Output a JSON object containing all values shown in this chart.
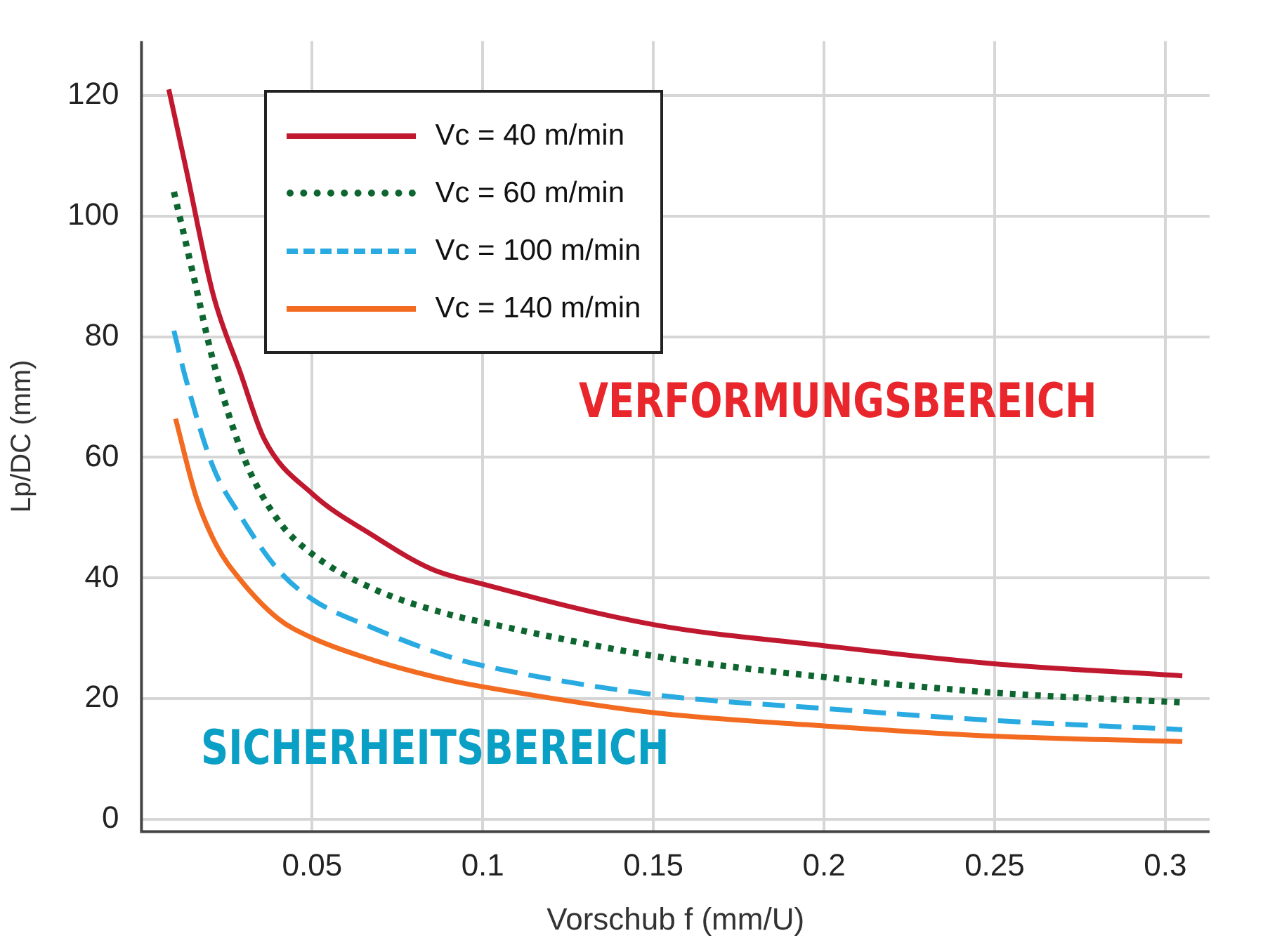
{
  "chart_data": {
    "type": "line",
    "xlabel": "Vorschub f (mm/U)",
    "ylabel": "Lp/DC (mm)",
    "xlim": [
      0,
      0.313
    ],
    "xticks": [
      0.05,
      0.1,
      0.15,
      0.2,
      0.25,
      0.3
    ],
    "ylim": [
      -2,
      129
    ],
    "yticks": [
      0,
      20,
      40,
      60,
      80,
      100,
      120
    ],
    "grid": true,
    "legend": "top left",
    "marker": "none",
    "annotations": [
      "VERFORMUNGSBEREICH",
      "SICHERHEITSBEREICH"
    ],
    "series": [
      {
        "name": "Vc = 40 m/min",
        "color": "#c0182f",
        "line_style": "solid",
        "x": [
          0.008,
          0.013,
          0.021,
          0.029,
          0.036,
          0.05,
          0.068,
          0.085,
          0.1,
          0.15,
          0.2,
          0.25,
          0.305
        ],
        "values": [
          121,
          108,
          87,
          74,
          63,
          54,
          47,
          41.5,
          39,
          32.3,
          28.8,
          25.8,
          23.8
        ]
      },
      {
        "name": "Vc = 60 m/min",
        "color": "#0d6630",
        "line_style": "dotted",
        "x": [
          0.0095,
          0.015,
          0.021,
          0.03,
          0.04,
          0.05,
          0.068,
          0.09,
          0.1,
          0.15,
          0.2,
          0.25,
          0.305
        ],
        "values": [
          104,
          90.7,
          76,
          60,
          49.6,
          44,
          38.2,
          34,
          32.7,
          27.1,
          23.6,
          21,
          19.4
        ]
      },
      {
        "name": "Vc = 100 m/min",
        "color": "#29abe2",
        "line_style": "dashed",
        "x": [
          0.0095,
          0.013,
          0.021,
          0.029,
          0.04,
          0.05,
          0.068,
          0.09,
          0.1,
          0.15,
          0.2,
          0.25,
          0.305
        ],
        "values": [
          81,
          73,
          58.4,
          50.3,
          41.4,
          36.5,
          31.7,
          27,
          25.5,
          20.7,
          18.4,
          16.4,
          14.9
        ]
      },
      {
        "name": "Vc = 140 m/min",
        "color": "#f26b21",
        "line_style": "solid",
        "x": [
          0.01,
          0.016,
          0.022,
          0.029,
          0.04,
          0.05,
          0.068,
          0.09,
          0.1,
          0.15,
          0.2,
          0.25,
          0.305
        ],
        "values": [
          66.4,
          53.5,
          45.4,
          39.7,
          33.3,
          30.1,
          26.4,
          23.1,
          22,
          17.7,
          15.5,
          13.8,
          12.9
        ]
      }
    ]
  }
}
